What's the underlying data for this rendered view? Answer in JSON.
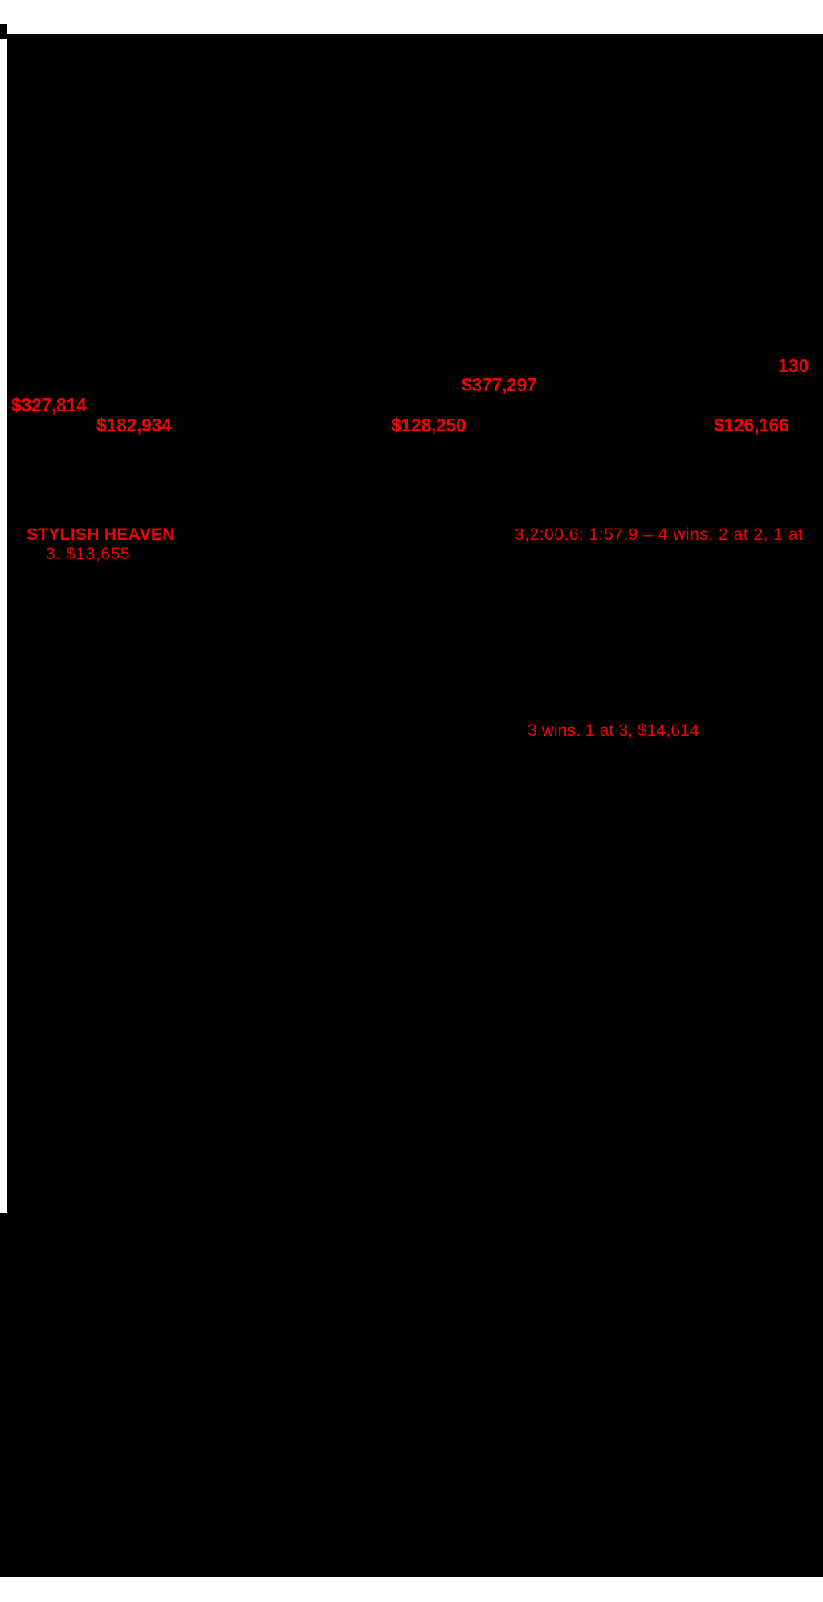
{
  "document": {
    "hip_number": "130",
    "stat_amounts": {
      "amount_top": "$377,297",
      "amount_left": "$327,814",
      "amount_row": [
        "$182,934",
        "$128,250",
        "$126,166"
      ]
    },
    "pedigree_highlights": {
      "horse_name": "STYLISH HEAVEN",
      "race_record_line": "3,2:00.6; 1:57.9 – 4 wins, 2 at 2, 1 at",
      "race_record_continuation": "3. $13,655",
      "produce_record_line": "3 wins. 1 at 3, $14,614"
    },
    "colors": {
      "highlight_red": "#f70000",
      "page_fill": "#000000",
      "canvas": "#ffffff"
    }
  }
}
